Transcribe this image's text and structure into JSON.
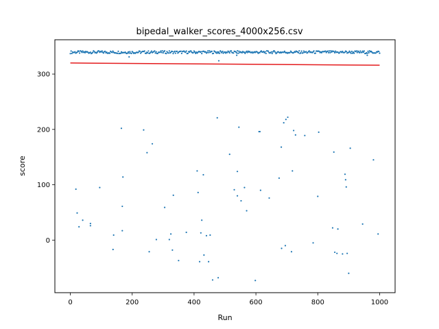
{
  "chart_data": {
    "type": "scatter",
    "title": "bipedal_walker_scores_4000x256.csv",
    "xlabel": "Run",
    "ylabel": "score",
    "xlim": [
      -50,
      1050
    ],
    "ylim": [
      -95,
      362
    ],
    "x_ticks": [
      0,
      200,
      400,
      600,
      800,
      1000
    ],
    "y_ticks": [
      0,
      100,
      200,
      300
    ],
    "grid": false,
    "legend": "none",
    "colors": {
      "points": "#1f77b4",
      "trend": "#e41a1c"
    },
    "series": [
      {
        "type": "scatter",
        "marker_size": 2,
        "band": {
          "x_start": 0,
          "x_end": 1000,
          "y_low": 337,
          "y_high": 342
        },
        "points": [
          [
            18,
            92
          ],
          [
            22,
            49
          ],
          [
            28,
            24
          ],
          [
            40,
            36
          ],
          [
            65,
            26
          ],
          [
            65,
            30
          ],
          [
            95,
            95
          ],
          [
            138,
            -17
          ],
          [
            140,
            9
          ],
          [
            165,
            202
          ],
          [
            168,
            61
          ],
          [
            168,
            17
          ],
          [
            170,
            114
          ],
          [
            190,
            331
          ],
          [
            237,
            199
          ],
          [
            248,
            158
          ],
          [
            255,
            -21
          ],
          [
            265,
            174
          ],
          [
            278,
            1
          ],
          [
            305,
            59
          ],
          [
            320,
            1
          ],
          [
            325,
            11
          ],
          [
            330,
            -18
          ],
          [
            333,
            81
          ],
          [
            350,
            -37
          ],
          [
            375,
            14
          ],
          [
            410,
            125
          ],
          [
            413,
            86
          ],
          [
            418,
            -39
          ],
          [
            422,
            13
          ],
          [
            425,
            36
          ],
          [
            430,
            118
          ],
          [
            432,
            -27
          ],
          [
            440,
            8
          ],
          [
            447,
            -39
          ],
          [
            452,
            9
          ],
          [
            460,
            -72
          ],
          [
            475,
            221
          ],
          [
            478,
            -68
          ],
          [
            480,
            324
          ],
          [
            515,
            155
          ],
          [
            530,
            91
          ],
          [
            538,
            334
          ],
          [
            540,
            124
          ],
          [
            540,
            80
          ],
          [
            545,
            204
          ],
          [
            552,
            71
          ],
          [
            563,
            95
          ],
          [
            570,
            53
          ],
          [
            598,
            -73
          ],
          [
            610,
            196
          ],
          [
            613,
            196
          ],
          [
            615,
            90
          ],
          [
            643,
            76
          ],
          [
            675,
            112
          ],
          [
            682,
            168
          ],
          [
            683,
            -15
          ],
          [
            690,
            212
          ],
          [
            695,
            -10
          ],
          [
            697,
            218
          ],
          [
            703,
            222
          ],
          [
            715,
            -21
          ],
          [
            718,
            125
          ],
          [
            722,
            198
          ],
          [
            728,
            190
          ],
          [
            758,
            189
          ],
          [
            785,
            -5
          ],
          [
            800,
            79
          ],
          [
            803,
            195
          ],
          [
            848,
            22
          ],
          [
            852,
            159
          ],
          [
            855,
            -22
          ],
          [
            862,
            -24
          ],
          [
            865,
            20
          ],
          [
            880,
            -25
          ],
          [
            888,
            119
          ],
          [
            890,
            109
          ],
          [
            892,
            96
          ],
          [
            895,
            -24
          ],
          [
            900,
            -60
          ],
          [
            905,
            166
          ],
          [
            945,
            29
          ],
          [
            960,
            334
          ],
          [
            980,
            145
          ],
          [
            995,
            11
          ]
        ]
      },
      {
        "type": "line",
        "points": [
          [
            0,
            320
          ],
          [
            1000,
            316
          ]
        ]
      }
    ]
  }
}
